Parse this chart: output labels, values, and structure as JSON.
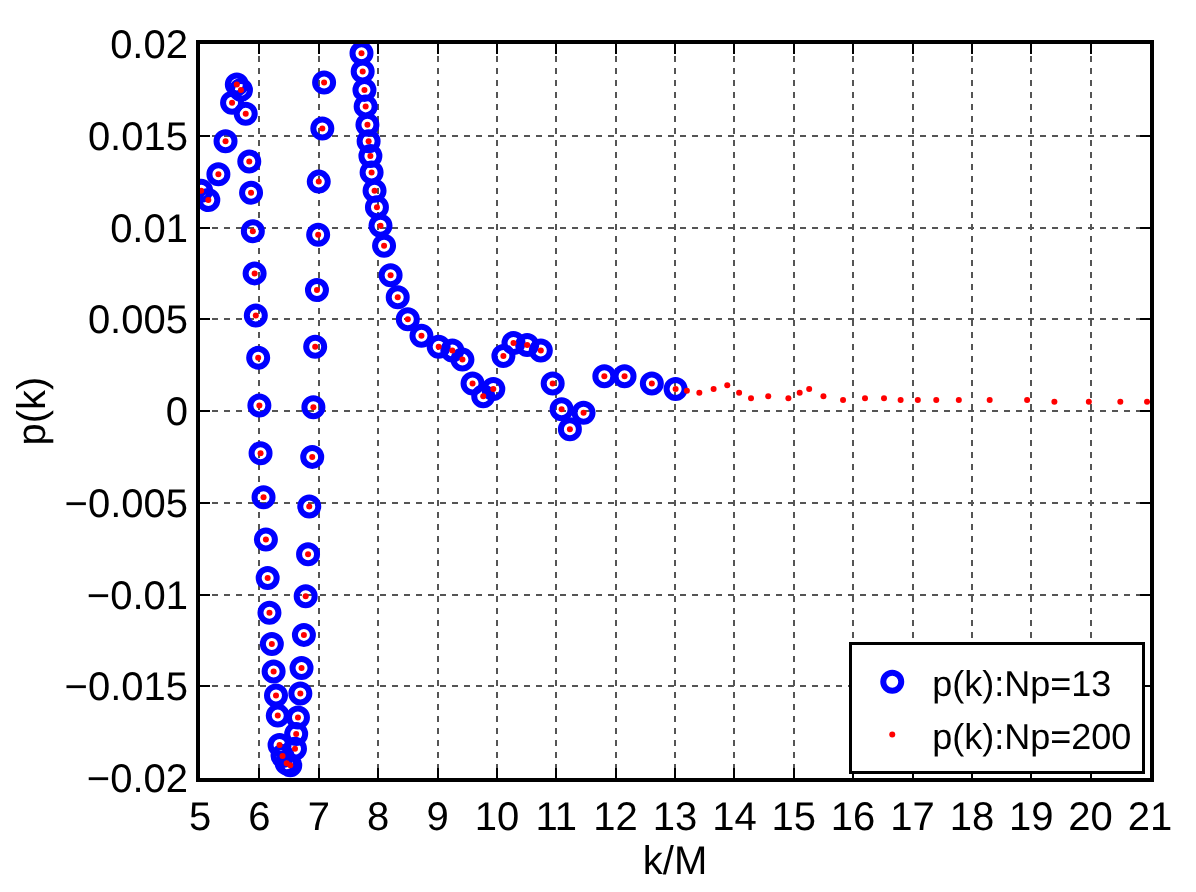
{
  "chart_data": {
    "type": "scatter",
    "xlabel": "k/M",
    "ylabel": "p(k)",
    "xlim": [
      5,
      21
    ],
    "xticks": [
      5,
      6,
      7,
      8,
      9,
      10,
      11,
      12,
      13,
      14,
      15,
      16,
      17,
      18,
      19,
      20,
      21
    ],
    "ylim": [
      -0.02,
      0.02
    ],
    "yticks": [
      {
        "value": -0.02,
        "label": "−0.02"
      },
      {
        "value": -0.015,
        "label": "−0.015"
      },
      {
        "value": -0.01,
        "label": "−0.01"
      },
      {
        "value": -0.005,
        "label": "−0.005"
      },
      0,
      0.005,
      0.01,
      0.015,
      0.02
    ],
    "grid": true,
    "legend": "bottom right",
    "series": [
      {
        "name": "p(k):Np=13",
        "color": "#0000ff",
        "marker": "circle",
        "x": [
          5.02,
          5.14,
          5.31,
          5.43,
          5.54,
          5.62,
          5.69,
          5.77,
          5.83,
          5.86,
          5.89,
          5.92,
          5.94,
          5.98,
          6.0,
          6.02,
          6.07,
          6.11,
          6.14,
          6.17,
          6.21,
          6.24,
          6.28,
          6.31,
          6.34,
          6.39,
          6.46,
          6.52,
          6.6,
          6.62,
          6.65,
          6.69,
          6.71,
          6.75,
          6.78,
          6.82,
          6.84,
          6.89,
          6.91,
          6.94,
          6.97,
          6.99,
          7.0,
          7.06,
          7.09,
          7.4,
          7.72,
          7.74,
          7.77,
          7.79,
          7.82,
          7.84,
          7.87,
          7.89,
          7.94,
          7.98,
          8.04,
          8.1,
          8.21,
          8.33,
          8.5,
          8.73,
          9.02,
          9.25,
          9.42,
          9.59,
          9.77,
          9.94,
          10.11,
          10.28,
          10.51,
          10.74,
          10.94,
          11.09,
          11.23,
          11.46,
          11.81,
          12.15,
          12.61,
          13.01
        ],
        "values": [
          0.012,
          0.0115,
          0.0129,
          0.0147,
          0.0168,
          0.0178,
          0.0175,
          0.0162,
          0.0136,
          0.0119,
          0.0098,
          0.0075,
          0.0052,
          0.0029,
          0.0003,
          -0.0023,
          -0.0047,
          -0.007,
          -0.0091,
          -0.011,
          -0.0127,
          -0.0142,
          -0.0155,
          -0.0166,
          -0.0182,
          -0.0188,
          -0.0192,
          -0.0193,
          -0.0184,
          -0.0176,
          -0.0167,
          -0.0154,
          -0.014,
          -0.0122,
          -0.0101,
          -0.0078,
          -0.0052,
          -0.0025,
          0.0002,
          0.0035,
          0.0066,
          0.0096,
          0.0125,
          0.0154,
          0.0179,
          null,
          0.0195,
          0.0185,
          0.0175,
          0.0166,
          0.0156,
          0.0147,
          0.0139,
          0.013,
          0.012,
          0.0111,
          0.0101,
          0.009,
          0.0074,
          0.0062,
          0.005,
          0.0041,
          0.0035,
          0.0033,
          0.0028,
          0.0015,
          0.0008,
          0.0012,
          0.003,
          0.0037,
          0.0036,
          0.0033,
          0.0015,
          0.0001,
          -0.001,
          -0.0001,
          0.0019,
          0.0019,
          0.0015,
          0.0012
        ]
      },
      {
        "name": "p(k):Np=200",
        "color": "#ff0000",
        "marker": "circle",
        "x": [
          5.02,
          5.14,
          5.31,
          5.43,
          5.54,
          5.62,
          5.69,
          5.77,
          5.83,
          5.86,
          5.89,
          5.92,
          5.94,
          5.98,
          6.0,
          6.02,
          6.07,
          6.11,
          6.14,
          6.17,
          6.21,
          6.24,
          6.28,
          6.31,
          6.34,
          6.39,
          6.46,
          6.52,
          6.6,
          6.62,
          6.65,
          6.69,
          6.71,
          6.75,
          6.78,
          6.82,
          6.84,
          6.89,
          6.91,
          6.94,
          6.97,
          6.99,
          7.0,
          7.06,
          7.09,
          7.4,
          7.72,
          7.74,
          7.77,
          7.79,
          7.82,
          7.84,
          7.87,
          7.89,
          7.94,
          7.98,
          8.04,
          8.1,
          8.21,
          8.33,
          8.5,
          8.73,
          9.02,
          9.25,
          9.42,
          9.59,
          9.77,
          9.94,
          10.11,
          10.28,
          10.51,
          10.74,
          10.94,
          11.09,
          11.23,
          11.46,
          11.81,
          12.15,
          12.61,
          13.01,
          13.2,
          13.41,
          13.65,
          13.88,
          14.08,
          14.28,
          14.57,
          14.91,
          15.1,
          15.26,
          15.5,
          15.83,
          16.2,
          16.52,
          16.8,
          17.09,
          17.4,
          17.78,
          18.3,
          18.93,
          19.39,
          19.97,
          20.5,
          20.95
        ],
        "values": [
          0.012,
          0.0115,
          0.0129,
          0.0147,
          0.0168,
          0.0178,
          0.0175,
          0.0162,
          0.0136,
          0.0119,
          0.0098,
          0.0075,
          0.0052,
          0.0029,
          0.0003,
          -0.0023,
          -0.0047,
          -0.007,
          -0.0091,
          -0.011,
          -0.0127,
          -0.0142,
          -0.0155,
          -0.0166,
          -0.0182,
          -0.0188,
          -0.0192,
          -0.0193,
          -0.0184,
          -0.0176,
          -0.0167,
          -0.0154,
          -0.014,
          -0.0122,
          -0.0101,
          -0.0078,
          -0.0052,
          -0.0025,
          0.0002,
          0.0035,
          0.0066,
          0.0096,
          0.0125,
          0.0154,
          0.0179,
          null,
          0.0195,
          0.0185,
          0.0175,
          0.0166,
          0.0156,
          0.0147,
          0.0139,
          0.013,
          0.012,
          0.0111,
          0.0101,
          0.009,
          0.0074,
          0.0062,
          0.005,
          0.0041,
          0.0035,
          0.0033,
          0.0028,
          0.0015,
          0.0008,
          0.0012,
          0.003,
          0.0037,
          0.0036,
          0.0033,
          0.0015,
          0.0001,
          -0.001,
          -0.0001,
          0.0019,
          0.0019,
          0.0015,
          0.0012,
          0.0011,
          0.001,
          0.0012,
          0.0014,
          0.001,
          0.0007,
          0.0008,
          0.0007,
          0.001,
          0.0012,
          0.0008,
          0.0006,
          0.0007,
          0.0007,
          0.0006,
          0.0006,
          0.0006,
          0.0006,
          0.0006,
          0.0006,
          0.0005,
          0.0005,
          0.0005,
          0.0005
        ]
      }
    ]
  }
}
